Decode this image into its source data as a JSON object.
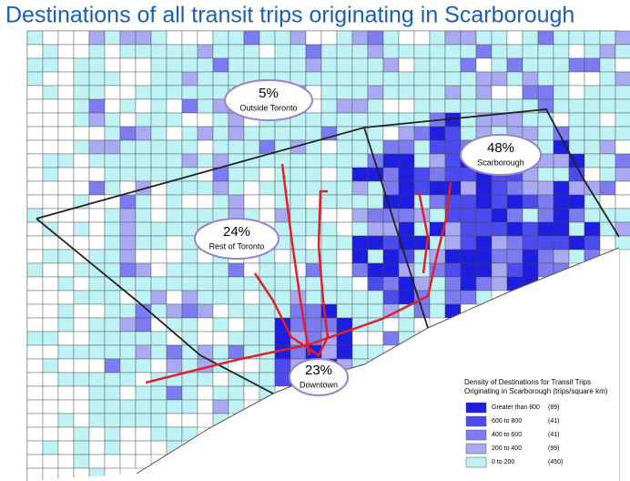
{
  "header": {
    "title": "Destinations of all transit trips originating in Scarborough"
  },
  "callouts": [
    {
      "value": "5%",
      "label": "Outside Toronto"
    },
    {
      "value": "48%",
      "label": "Scarborough"
    },
    {
      "value": "24%",
      "label": "Rest of Toronto"
    },
    {
      "value": "23%",
      "label": "Downtown"
    }
  ],
  "legend": {
    "title_lines": [
      "Density of Destinations for Transit Trips",
      "Originating in Scarborough (trips/square km)"
    ],
    "items": [
      {
        "label": "Greater than 800",
        "count": "(89)",
        "color": "#1e1ee0"
      },
      {
        "label": "600 to 800",
        "count": "(41)",
        "color": "#4c4cee"
      },
      {
        "label": "400 to 600",
        "count": "(41)",
        "color": "#7c7cf0"
      },
      {
        "label": "200 to 400",
        "count": "(99)",
        "color": "#a9a9f2"
      },
      {
        "label": "0 to 200",
        "count": "(450)",
        "color": "#bff2f4"
      }
    ]
  }
}
